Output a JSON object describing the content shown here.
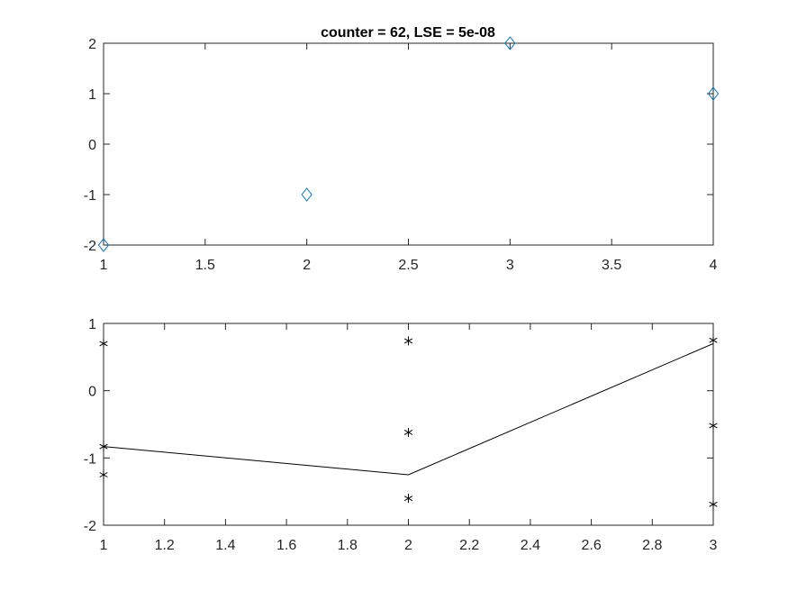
{
  "chart_data": [
    {
      "type": "scatter",
      "title": "counter = 62, LSE = 5e-08",
      "xlabel": "",
      "ylabel": "",
      "xlim": [
        1,
        4
      ],
      "ylim": [
        -2,
        2
      ],
      "xticks": [
        1,
        1.5,
        2,
        2.5,
        3,
        3.5,
        4
      ],
      "yticks": [
        -2,
        -1,
        0,
        1,
        2
      ],
      "xtick_labels": [
        "1",
        "1.5",
        "2",
        "2.5",
        "3",
        "3.5",
        "4"
      ],
      "ytick_labels": [
        "-2",
        "-1",
        "0",
        "1",
        "2"
      ],
      "grid": false,
      "series": [
        {
          "marker": "diamond",
          "color": "#0072BD",
          "x": [
            1,
            2,
            3,
            4
          ],
          "y": [
            -2,
            -1,
            2,
            1
          ]
        }
      ]
    },
    {
      "type": "line",
      "title": "",
      "xlabel": "",
      "ylabel": "",
      "xlim": [
        1,
        3
      ],
      "ylim": [
        -2,
        1
      ],
      "xticks": [
        1,
        1.2,
        1.4,
        1.6,
        1.8,
        2,
        2.2,
        2.4,
        2.6,
        2.8,
        3
      ],
      "yticks": [
        -2,
        -1,
        0,
        1
      ],
      "xtick_labels": [
        "1",
        "1.2",
        "1.4",
        "1.6",
        "1.8",
        "2",
        "2.2",
        "2.4",
        "2.6",
        "2.8",
        "3"
      ],
      "ytick_labels": [
        "-2",
        "-1",
        "0",
        "1"
      ],
      "grid": false,
      "series": [
        {
          "marker": "asterisk",
          "color": "#000000",
          "x": [
            1,
            1,
            1,
            2,
            2,
            2,
            3,
            3,
            3
          ],
          "y": [
            0.7,
            -0.83,
            -1.25,
            0.74,
            -0.62,
            -1.6,
            0.75,
            -0.52,
            -1.69
          ]
        },
        {
          "marker": "none",
          "line": "solid",
          "color": "#000000",
          "x": [
            1,
            2,
            3
          ],
          "y": [
            -0.83,
            -1.25,
            0.7
          ]
        }
      ]
    }
  ]
}
